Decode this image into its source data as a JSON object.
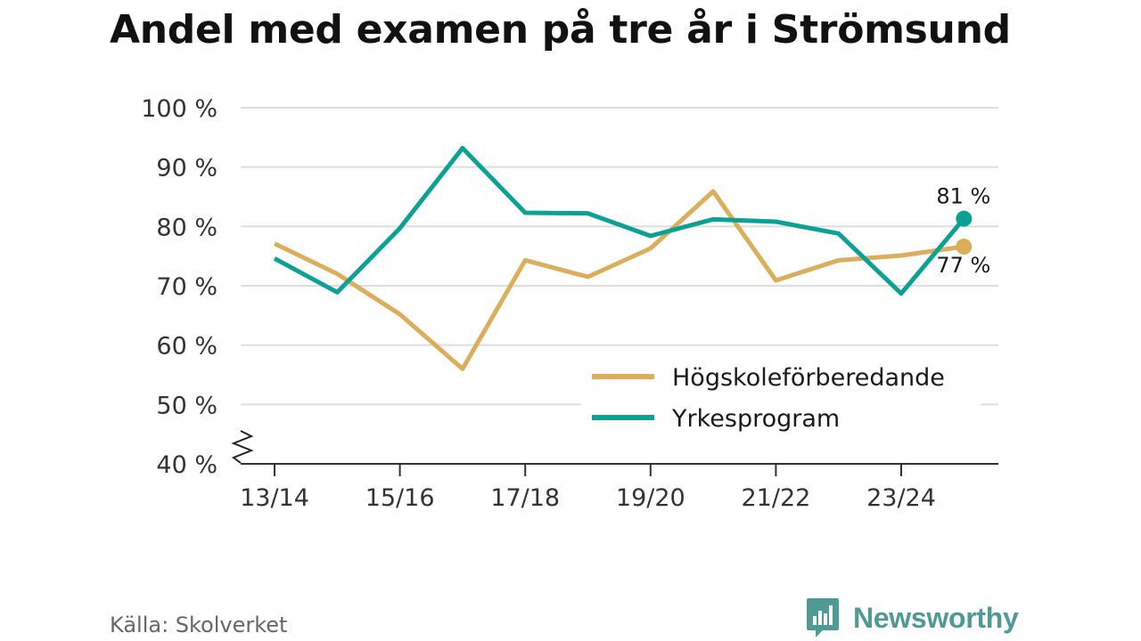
{
  "title": "Andel med examen på tre år i Strömsund",
  "source": "Källa: Skolverket",
  "brand": {
    "name": "Newsworthy",
    "icon": "newsworthy-logo-icon",
    "color": "#4f9a94"
  },
  "chart_data": {
    "type": "line",
    "title": "Andel med examen på tre år i Strömsund",
    "xlabel": "",
    "ylabel": "",
    "ylim": [
      40,
      100
    ],
    "yticks": [
      40,
      50,
      60,
      70,
      80,
      90,
      100
    ],
    "ytick_labels": [
      "40 %",
      "50 %",
      "60 %",
      "70 %",
      "80 %",
      "90 %",
      "100 %"
    ],
    "axis_break": true,
    "grid": true,
    "categories": [
      "13/14",
      "14/15",
      "15/16",
      "16/17",
      "17/18",
      "18/19",
      "19/20",
      "20/21",
      "21/22",
      "22/23",
      "23/24",
      "24/25"
    ],
    "xtick_labels": [
      "13/14",
      "",
      "15/16",
      "",
      "17/18",
      "",
      "19/20",
      "",
      "21/22",
      "",
      "23/24",
      ""
    ],
    "legend_position": "lower-right",
    "series": [
      {
        "name": "Högskoleförberedande",
        "color": "#dcae5b",
        "values": [
          77.1,
          72,
          65.2,
          56,
          74.3,
          71.5,
          76.3,
          85.9,
          70.9,
          74.3,
          75.1,
          76.6
        ],
        "end_label": "77 %"
      },
      {
        "name": "Yrkesprogram",
        "color": "#0ca195",
        "values": [
          74.6,
          68.9,
          79.7,
          93.2,
          82.3,
          82.2,
          78.4,
          81.2,
          80.8,
          78.8,
          68.7,
          81.3
        ],
        "end_label": "81 %"
      }
    ]
  }
}
